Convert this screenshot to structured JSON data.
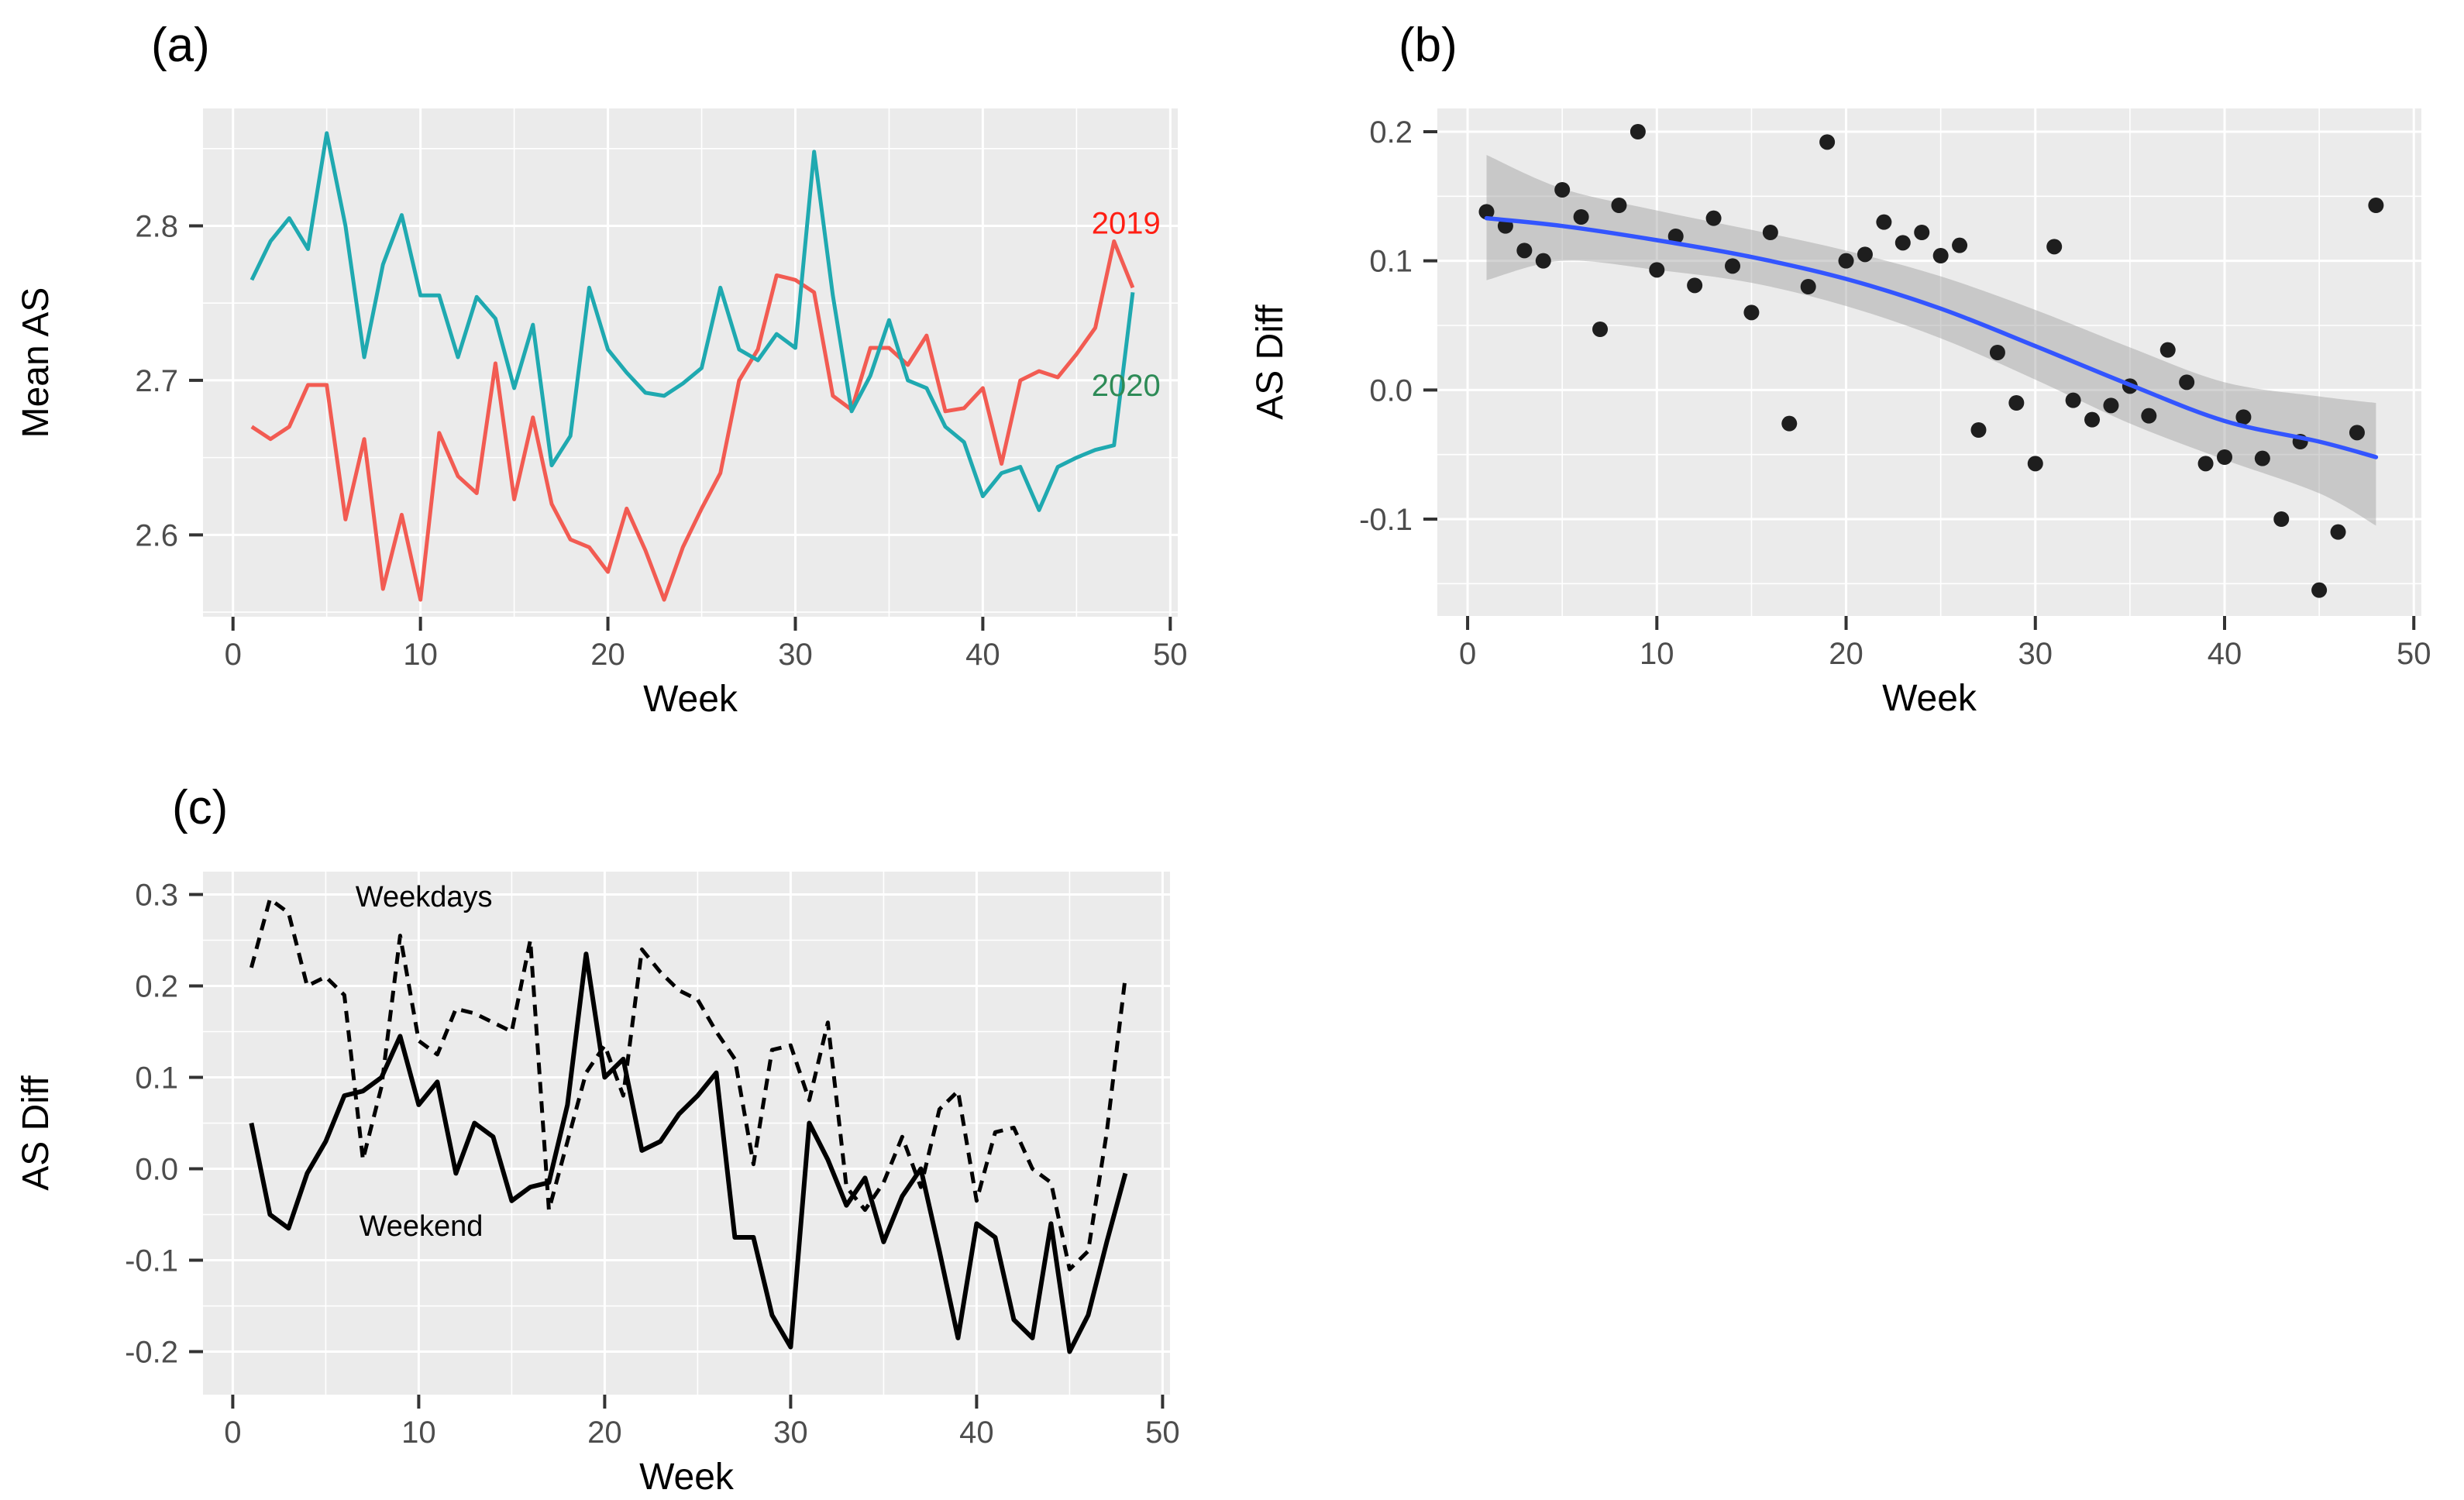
{
  "figure": {
    "background": "#ffffff"
  },
  "colors": {
    "panel_bg": "#EBEBEB",
    "grid": "#FFFFFF",
    "tick_text": "#4D4D4D",
    "tick_mark": "#333333",
    "axis_title": "#000000",
    "red_2019": "#F25B52",
    "teal_2020": "#1FA9B0",
    "label_2019": "#FF1F14",
    "label_2020": "#2E8B57",
    "dot": "#1E1E1E",
    "smooth_blue": "#3355FF",
    "ribbon": "#9E9E9E",
    "black_line": "#000000"
  },
  "chart_data": [
    {
      "panel": "a",
      "letter": "(a)",
      "type": "line",
      "xlabel": "Week",
      "ylabel": "Mean AS",
      "xlim": [
        -1.6,
        50.4
      ],
      "ylim": [
        2.547,
        2.876
      ],
      "x_ticks": {
        "values": [
          0,
          10,
          20,
          30,
          40,
          50
        ],
        "labels": [
          "0",
          "10",
          "20",
          "30",
          "40",
          "50"
        ]
      },
      "y_ticks": {
        "values": [
          2.6,
          2.7,
          2.8
        ],
        "labels": [
          "2.6",
          "2.7",
          "2.8"
        ]
      },
      "x_minor": [
        5,
        15,
        25,
        35,
        45
      ],
      "y_minor": [
        2.55,
        2.65,
        2.75,
        2.85
      ],
      "weeks": [
        1,
        2,
        3,
        4,
        5,
        6,
        7,
        8,
        9,
        10,
        11,
        12,
        13,
        14,
        15,
        16,
        17,
        18,
        19,
        20,
        21,
        22,
        23,
        24,
        25,
        26,
        27,
        28,
        29,
        30,
        31,
        32,
        33,
        34,
        35,
        36,
        37,
        38,
        39,
        40,
        41,
        42,
        43,
        44,
        45,
        46,
        47,
        48
      ],
      "series": [
        {
          "name": "2019",
          "color_key": "red_2019",
          "dash": null,
          "width": 5,
          "values": [
            2.67,
            2.662,
            2.67,
            2.697,
            2.697,
            2.61,
            2.662,
            2.565,
            2.613,
            2.558,
            2.666,
            2.638,
            2.627,
            2.711,
            2.623,
            2.676,
            2.62,
            2.597,
            2.592,
            2.576,
            2.617,
            2.59,
            2.558,
            2.592,
            2.617,
            2.64,
            2.7,
            2.72,
            2.768,
            2.765,
            2.757,
            2.69,
            2.681,
            2.721,
            2.721,
            2.71,
            2.729,
            2.68,
            2.682,
            2.695,
            2.646,
            2.7,
            2.706,
            2.702,
            2.717,
            2.734,
            2.79,
            2.76
          ],
          "inline_label": {
            "text": "2019",
            "x": 45.8,
            "y": 2.802,
            "color_key": "label_2019",
            "size": 40
          }
        },
        {
          "name": "2020",
          "color_key": "teal_2020",
          "dash": null,
          "width": 5,
          "values": [
            2.765,
            2.79,
            2.805,
            2.785,
            2.86,
            2.8,
            2.715,
            2.775,
            2.807,
            2.755,
            2.755,
            2.715,
            2.754,
            2.74,
            2.695,
            2.736,
            2.645,
            2.664,
            2.76,
            2.72,
            2.705,
            2.692,
            2.69,
            2.698,
            2.708,
            2.76,
            2.72,
            2.713,
            2.73,
            2.721,
            2.848,
            2.755,
            2.68,
            2.703,
            2.739,
            2.7,
            2.695,
            2.67,
            2.66,
            2.625,
            2.64,
            2.644,
            2.616,
            2.644,
            2.65,
            2.655,
            2.658,
            2.757
          ],
          "inline_label": {
            "text": "2020",
            "x": 45.8,
            "y": 2.697,
            "color_key": "label_2020",
            "size": 40
          }
        }
      ]
    },
    {
      "panel": "b",
      "letter": "(b)",
      "type": "scatter",
      "xlabel": "Week",
      "ylabel": "AS Diff",
      "xlim": [
        -1.6,
        50.4
      ],
      "ylim": [
        -0.175,
        0.218
      ],
      "x_ticks": {
        "values": [
          0,
          10,
          20,
          30,
          40,
          50
        ],
        "labels": [
          "0",
          "10",
          "20",
          "30",
          "40",
          "50"
        ]
      },
      "y_ticks": {
        "values": [
          0.2,
          0.1,
          0.0,
          -0.1
        ],
        "labels": [
          "0.2",
          "0.1",
          "0.0",
          "-0.1"
        ]
      },
      "x_minor": [
        5,
        15,
        25,
        35,
        45
      ],
      "y_minor": [
        -0.15,
        -0.05,
        0.05,
        0.15
      ],
      "points": {
        "weeks": [
          1,
          2,
          3,
          4,
          5,
          6,
          7,
          8,
          9,
          10,
          11,
          12,
          13,
          14,
          15,
          16,
          17,
          18,
          19,
          20,
          21,
          22,
          23,
          24,
          25,
          26,
          27,
          28,
          29,
          30,
          31,
          32,
          33,
          34,
          35,
          36,
          37,
          38,
          39,
          40,
          41,
          42,
          43,
          44,
          45,
          46,
          47,
          48
        ],
        "values": [
          0.138,
          0.127,
          0.108,
          0.1,
          0.155,
          0.134,
          0.047,
          0.143,
          0.2,
          0.093,
          0.119,
          0.081,
          0.133,
          0.096,
          0.06,
          0.122,
          -0.026,
          0.08,
          0.192,
          0.1,
          0.105,
          0.13,
          0.114,
          0.122,
          0.104,
          0.112,
          -0.031,
          0.029,
          -0.01,
          -0.057,
          0.111,
          -0.008,
          -0.023,
          -0.012,
          0.003,
          -0.02,
          0.031,
          0.006,
          -0.057,
          -0.052,
          -0.021,
          -0.053,
          -0.1,
          -0.04,
          -0.155,
          -0.11,
          -0.033,
          0.143
        ]
      },
      "smooth": {
        "weeks": [
          1,
          5,
          10,
          15,
          20,
          25,
          30,
          35,
          40,
          45,
          48
        ],
        "values": [
          0.133,
          0.127,
          0.116,
          0.103,
          0.086,
          0.063,
          0.034,
          0.004,
          -0.024,
          -0.04,
          -0.052
        ],
        "upper": [
          0.182,
          0.156,
          0.139,
          0.124,
          0.108,
          0.088,
          0.062,
          0.033,
          0.006,
          -0.005,
          -0.01
        ],
        "lower": [
          0.085,
          0.1,
          0.093,
          0.083,
          0.065,
          0.04,
          0.008,
          -0.026,
          -0.054,
          -0.08,
          -0.105
        ]
      }
    },
    {
      "panel": "c",
      "letter": "(c)",
      "type": "line",
      "xlabel": "Week",
      "ylabel": "AS Diff",
      "xlim": [
        -1.6,
        50.4
      ],
      "ylim": [
        -0.247,
        0.325
      ],
      "x_ticks": {
        "values": [
          0,
          10,
          20,
          30,
          40,
          50
        ],
        "labels": [
          "0",
          "10",
          "20",
          "30",
          "40",
          "50"
        ]
      },
      "y_ticks": {
        "values": [
          0.3,
          0.2,
          0.1,
          0.0,
          -0.1,
          -0.2
        ],
        "labels": [
          "0.3",
          "0.2",
          "0.1",
          "0.0",
          "-0.1",
          "-0.2"
        ]
      },
      "x_minor": [
        5,
        15,
        25,
        35,
        45
      ],
      "y_minor": [
        -0.15,
        -0.05,
        0.05,
        0.15,
        0.25
      ],
      "weeks": [
        1,
        2,
        3,
        4,
        5,
        6,
        7,
        8,
        9,
        10,
        11,
        12,
        13,
        14,
        15,
        16,
        17,
        18,
        19,
        20,
        21,
        22,
        23,
        24,
        25,
        26,
        27,
        28,
        29,
        30,
        31,
        32,
        33,
        34,
        35,
        36,
        37,
        38,
        39,
        40,
        41,
        42,
        43,
        44,
        45,
        46,
        47,
        48
      ],
      "series": [
        {
          "name": "Weekdays",
          "color_key": "black_line",
          "dash": "15 10",
          "width": 5,
          "values": [
            0.22,
            0.295,
            0.28,
            0.2,
            0.21,
            0.19,
            0.01,
            0.09,
            0.255,
            0.14,
            0.125,
            0.175,
            0.17,
            0.16,
            0.15,
            0.25,
            -0.045,
            0.03,
            0.105,
            0.135,
            0.08,
            0.24,
            0.215,
            0.195,
            0.185,
            0.15,
            0.12,
            0.005,
            0.13,
            0.135,
            0.075,
            0.16,
            -0.02,
            -0.045,
            -0.015,
            0.035,
            -0.02,
            0.065,
            0.085,
            -0.035,
            0.04,
            0.045,
            0.0,
            -0.015,
            -0.11,
            -0.09,
            0.04,
            0.21
          ],
          "inline_label": {
            "text": "Weekdays",
            "x": 6.6,
            "y": 0.298,
            "color_key": "black_line",
            "size": 38
          }
        },
        {
          "name": "Weekend",
          "color_key": "black_line",
          "dash": null,
          "width": 6,
          "values": [
            0.05,
            -0.05,
            -0.065,
            -0.005,
            0.03,
            0.08,
            0.085,
            0.1,
            0.145,
            0.07,
            0.095,
            -0.005,
            0.05,
            0.035,
            -0.035,
            -0.02,
            -0.015,
            0.07,
            0.235,
            0.1,
            0.12,
            0.02,
            0.03,
            0.06,
            0.08,
            0.105,
            -0.075,
            -0.075,
            -0.16,
            -0.195,
            0.05,
            0.01,
            -0.04,
            -0.01,
            -0.08,
            -0.03,
            0.0,
            -0.09,
            -0.185,
            -0.06,
            -0.075,
            -0.165,
            -0.185,
            -0.06,
            -0.2,
            -0.16,
            -0.08,
            -0.005
          ],
          "inline_label": {
            "text": "Weekend",
            "x": 6.8,
            "y": -0.062,
            "color_key": "black_line",
            "size": 38
          }
        }
      ]
    }
  ]
}
